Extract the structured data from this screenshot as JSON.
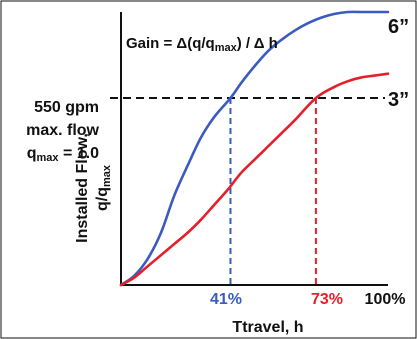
{
  "chart_data": {
    "type": "line",
    "xlabel": "Ttravel, h",
    "ylabel_line1": "Installed Flow,",
    "ylabel_line2": "q/q",
    "ylabel_sub": "max",
    "x_ticks": [
      "41%",
      "73%",
      "100%"
    ],
    "xlim": [
      0,
      100
    ],
    "ylim": [
      0,
      1.46
    ],
    "annotation": {
      "gain_prefix": "Gain = Δ(q/q",
      "gain_sub": "max",
      "gain_suffix": ") / Δ h"
    },
    "reference_line": {
      "y": 1.0,
      "label_1": "550 gpm",
      "label_2": "max. flow",
      "label_3_prefix": "q",
      "label_3_sub": "max",
      "label_3_suffix": " = 1.0"
    },
    "series": [
      {
        "name": "6”",
        "color": "#3b5bbf",
        "crosses_reference_at": 41,
        "x": [
          0,
          5,
          10,
          15,
          20,
          25,
          30,
          35,
          41,
          45,
          50,
          55,
          60,
          65,
          70,
          75,
          80,
          85,
          90,
          95,
          100
        ],
        "y": [
          0,
          0.05,
          0.14,
          0.28,
          0.48,
          0.64,
          0.79,
          0.9,
          1.0,
          1.08,
          1.17,
          1.25,
          1.31,
          1.36,
          1.4,
          1.43,
          1.45,
          1.46,
          1.46,
          1.46,
          1.46
        ]
      },
      {
        "name": "3”",
        "color": "#e4202a",
        "crosses_reference_at": 73,
        "x": [
          0,
          5,
          10,
          15,
          20,
          25,
          30,
          35,
          40,
          45,
          50,
          55,
          60,
          65,
          73,
          80,
          85,
          90,
          95,
          100
        ],
        "y": [
          0,
          0.04,
          0.1,
          0.16,
          0.22,
          0.28,
          0.35,
          0.43,
          0.51,
          0.6,
          0.67,
          0.74,
          0.81,
          0.88,
          1.0,
          1.06,
          1.09,
          1.11,
          1.12,
          1.13
        ]
      }
    ]
  }
}
